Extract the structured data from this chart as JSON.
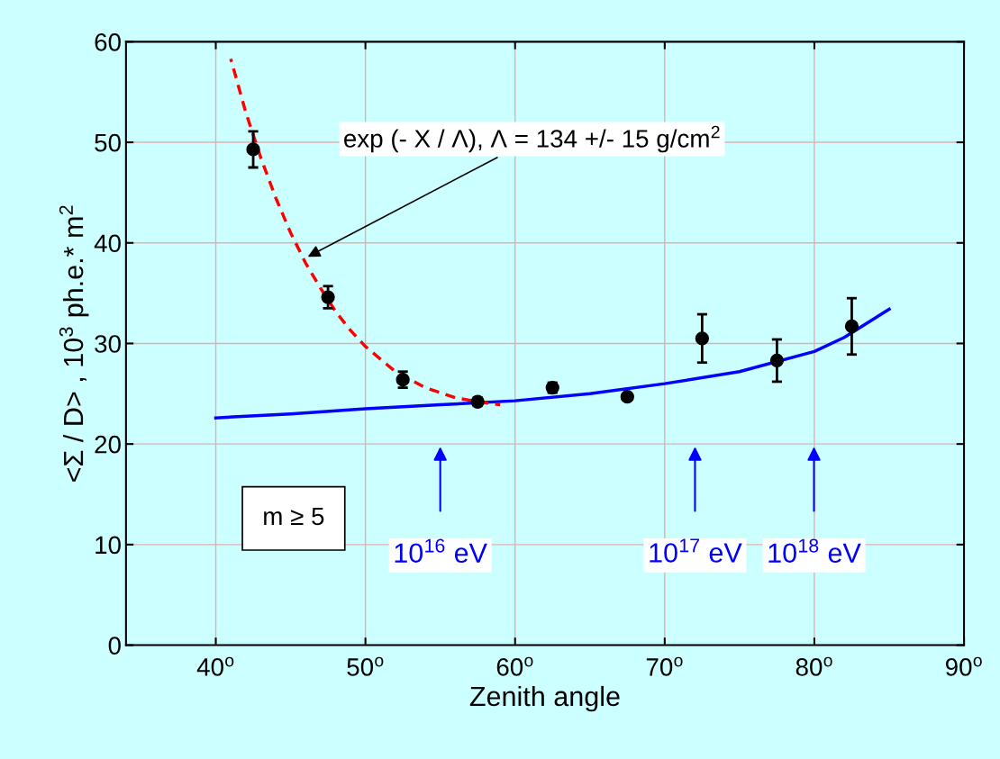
{
  "chart_data": {
    "type": "scatter",
    "xlabel": "Zenith angle",
    "ylabel": "<Σ / D> , 10$^{3}$ ph.e.* m$^{2}$",
    "xlim": [
      34,
      90
    ],
    "ylim": [
      0,
      60
    ],
    "xticks": [
      {
        "value": 40,
        "label": "40$^{o}$"
      },
      {
        "value": 50,
        "label": "50$^{o}$"
      },
      {
        "value": 60,
        "label": "60$^{o}$"
      },
      {
        "value": 70,
        "label": "70$^{o}$"
      },
      {
        "value": 80,
        "label": "80$^{o}$"
      },
      {
        "value": 90,
        "label": "90$^{o}$"
      }
    ],
    "yticks": [
      0,
      10,
      20,
      30,
      40,
      50,
      60
    ],
    "grid": true,
    "series": [
      {
        "marker": "circle",
        "color": "#000000",
        "x": [
          42.5,
          47.5,
          52.5,
          57.5,
          62.5,
          67.5,
          72.5,
          77.5,
          82.5
        ],
        "values": [
          49.3,
          34.6,
          26.4,
          24.2,
          25.6,
          24.7,
          30.5,
          28.3,
          31.7
        ],
        "errors": [
          1.8,
          1.1,
          0.8,
          0.4,
          0.5,
          0.3,
          2.4,
          2.1,
          2.8
        ]
      },
      {
        "type": "line",
        "color": "#ff0000",
        "line_style": "dashed",
        "x": [
          41,
          42,
          43,
          44,
          45,
          46,
          47,
          48,
          49,
          50,
          52,
          54,
          56,
          58,
          59
        ],
        "values": [
          58.3,
          53,
          48.5,
          44.5,
          41,
          38,
          35.5,
          33.2,
          31.3,
          29.7,
          27.2,
          25.6,
          24.6,
          24.1,
          23.9
        ]
      },
      {
        "type": "line",
        "color": "#0000ff",
        "line_style": "solid",
        "x": [
          40,
          45,
          50,
          55,
          60,
          65,
          70,
          75,
          80,
          82,
          85
        ],
        "values": [
          22.6,
          23.0,
          23.5,
          23.9,
          24.3,
          25.0,
          26.0,
          27.2,
          29.2,
          30.6,
          33.4
        ]
      }
    ],
    "annotations": [
      {
        "text": "exp (- X / Λ), Λ = 134 +/- 15 g/cm$^{2}$",
        "x": 46,
        "y": 38.5
      },
      "m ≥ 5",
      "10$^{16}$ eV",
      "10$^{17}$ eV",
      "10$^{18}$ eV"
    ]
  }
}
